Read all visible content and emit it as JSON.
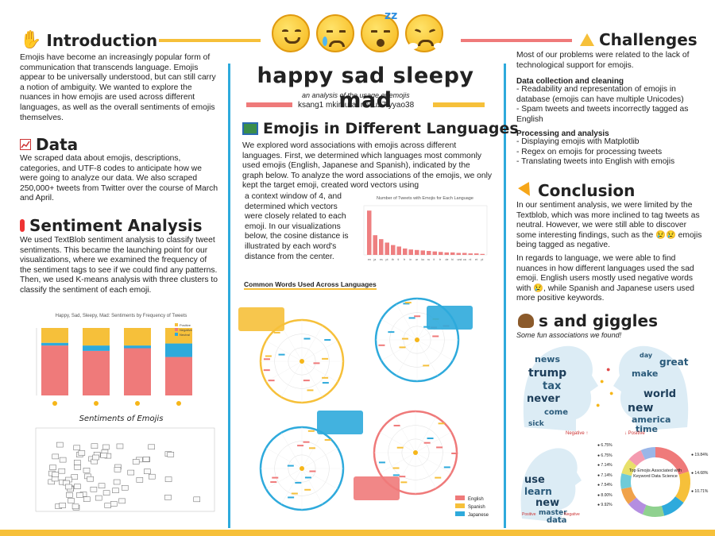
{
  "intro": {
    "title": "Introduction",
    "text": "Emojis have become an increasingly popular form of communication that transcends language. Emojis appear to be universally understood, but can still carry a notion of ambiguity. We wanted to explore the nuances in how emojis are used across different languages, as well as the overall sentiments of emojis themselves."
  },
  "data_section": {
    "title": "Data",
    "text": "We scraped data about emojis, descriptions, categories, and UTF-8 codes to anticipate how we were going to analyze our data. We also scraped 250,000+ tweets from Twitter over the course of March and April."
  },
  "sentiment": {
    "title": "Sentiment Analysis",
    "text": "We used TextBlob sentiment analysis to classify tweet sentiments. This became the launching point for our visualizations, where we examined the frequency of the sentiment tags to see if we could find any patterns. Then, we used K-means analysis with three clusters to classify the sentiment of each emoji.",
    "chart_title": "Happy, Sad, Sleepy, Mad: Sentiments by Frequency of Tweets",
    "legend": [
      "Positive",
      "Negative",
      "Neutral"
    ],
    "scatter_title": "Sentiments of Emojis"
  },
  "header": {
    "title": "happy sad sleepy mad",
    "subtitle": "an analysis of the usage of emojis",
    "authors": "ksang1 mkimurat mwu27 yyao38"
  },
  "languages": {
    "title": "Emojis in Different Languages",
    "text_a": "We explored word associations with emojis across different languages. First, we determined which languages most commonly used emojis (English, Japanese and Spanish), indicated by the graph below. To analyze the word associations of the emojis, we only kept the target emoji, created word vectors using",
    "text_b": "a context window of 4, and determined which vectors were closely related to each emoji. In our visualizations below, the cosine distance is illustrated by each word's distance from the center.",
    "bar_title": "Number of Tweets with Emojis for Each Language",
    "common_title": "Common Words Used Across Languages",
    "legend": [
      "English",
      "Spanish",
      "Japanese"
    ]
  },
  "challenges": {
    "title": "Challenges",
    "intro": "Most of our problems were related to the lack of technological support for emojis.",
    "sub1": "Data collection and cleaning",
    "items1": "- Readability and representation of emojis in database (emojis can have multiple Unicodes)\n- Spam tweets and tweets incorrectly tagged as English",
    "sub2": "Processing and analysis",
    "items2": "- Displaying emojis with Matplotlib\n- Regex on emojis for processing tweets\n- Translating tweets into English with emojis"
  },
  "conclusion": {
    "title": "Conclusion",
    "text1": "In our sentiment analysis, we were limited by the Textblob, which was more inclined to tag tweets as neutral. However, we were still able to discover some interesting findings, such as the 😢😢 emojis being tagged as negative.",
    "text2": "In regards to language, we were able to find nuances in how different languages used the sad emoji. English users mostly used negative words with 😢, while Spanish and Japanese users used more positive keywords."
  },
  "giggles": {
    "title": "s and giggles",
    "subtitle": "Some fun associations we found!",
    "neg_label": "Negative",
    "pos_label": "Positive",
    "donut_title": "Top Emojis Associated with Keyword Data Science",
    "percents_left": [
      "6.75%",
      "6.75%",
      "7.14%",
      "7.14%",
      "7.54%",
      "8.00%",
      "9.92%"
    ],
    "percents_right": [
      "19.84%",
      "14.68%",
      "10.71%"
    ]
  },
  "chart_data": [
    {
      "type": "bar",
      "title": "Happy, Sad, Sleepy, Mad: Sentiments by Frequency of Tweets",
      "categories": [
        "😊",
        "😢",
        "😴",
        "😤"
      ],
      "series": [
        {
          "name": "Positive",
          "values": [
            0.74,
            0.66,
            0.7,
            0.57
          ]
        },
        {
          "name": "Negative",
          "values": [
            0.04,
            0.08,
            0.04,
            0.2
          ]
        },
        {
          "name": "Neutral",
          "values": [
            0.22,
            0.26,
            0.26,
            0.23
          ]
        }
      ]
    },
    {
      "type": "bar",
      "title": "Number of Tweets with Emojis for Each Language",
      "categories": [
        "en",
        "ja",
        "es",
        "pt",
        "th",
        "tl",
        "fr",
        "in",
        "ar",
        "ko",
        "ru",
        "it",
        "tr",
        "de",
        "hi",
        "und",
        "ca",
        "nl",
        "et",
        "pl"
      ],
      "values": [
        90,
        40,
        32,
        25,
        20,
        17,
        13,
        11,
        10,
        9,
        8,
        7,
        6,
        5,
        5,
        4,
        4,
        3,
        3,
        2
      ]
    }
  ],
  "colors": {
    "yellow": "#f6c03a",
    "blue": "#2eaadc",
    "coral": "#ef7a7a",
    "bar_red": "#ee7f80"
  }
}
